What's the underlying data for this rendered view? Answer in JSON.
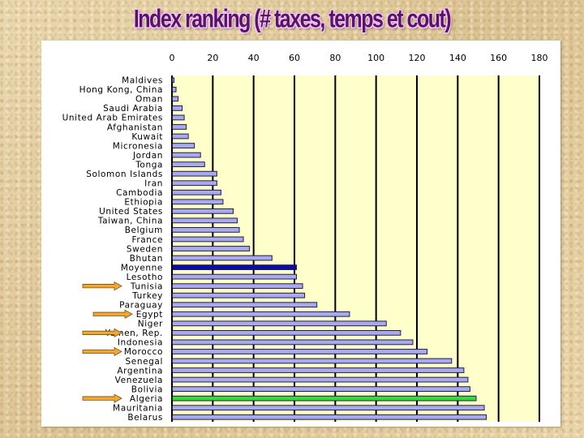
{
  "slide": {
    "title": "Index ranking (# taxes, temps et cout)"
  },
  "colors": {
    "plot_background": "#ffffcc",
    "bar": "#a9a9f0",
    "bar_border": "#202040",
    "highlight_average": "#0a0ab4",
    "highlight_algeria": "#33dd33"
  },
  "chart_data": {
    "type": "bar",
    "orientation": "horizontal",
    "title": "Index ranking (# taxes, temps et cout)",
    "xlabel": "",
    "ylabel": "",
    "xlim": [
      0,
      180
    ],
    "xticks": [
      0,
      20,
      40,
      60,
      80,
      100,
      120,
      140,
      160,
      180
    ],
    "grid": "vertical",
    "categories": [
      "Maldives",
      "Hong Kong, China",
      "Oman",
      "Saudi Arabia",
      "United Arab Emirates",
      "Afghanistan",
      "Kuwait",
      "Micronesia",
      "Jordan",
      "Tonga",
      "Solomon Islands",
      "Iran",
      "Cambodia",
      "Ethiopia",
      "United States",
      "Taiwan, China",
      "Belgium",
      "France",
      "Sweden",
      "Bhutan",
      "Moyenne",
      "Lesotho",
      "Tunisia",
      "Turkey",
      "Paraguay",
      "Egypt",
      "Niger",
      "Yemen, Rep.",
      "Indonesia",
      "Morocco",
      "Senegal",
      "Argentina",
      "Venezuela",
      "Bolivia",
      "Algeria",
      "Mauritania",
      "Belarus"
    ],
    "values": [
      1,
      2,
      3,
      5,
      6,
      7,
      8,
      11,
      14,
      16,
      22,
      22,
      24,
      25,
      30,
      32,
      33,
      35,
      38,
      49,
      61,
      61,
      64,
      65,
      71,
      87,
      105,
      112,
      118,
      125,
      137,
      143,
      145,
      146,
      149,
      153,
      154
    ],
    "highlighted": {
      "Moyenne": "average",
      "Algeria": "algeria"
    },
    "arrow_markers": [
      "Tunisia",
      "Egypt",
      "Yemen, Rep.",
      "Morocco",
      "Algeria"
    ]
  }
}
